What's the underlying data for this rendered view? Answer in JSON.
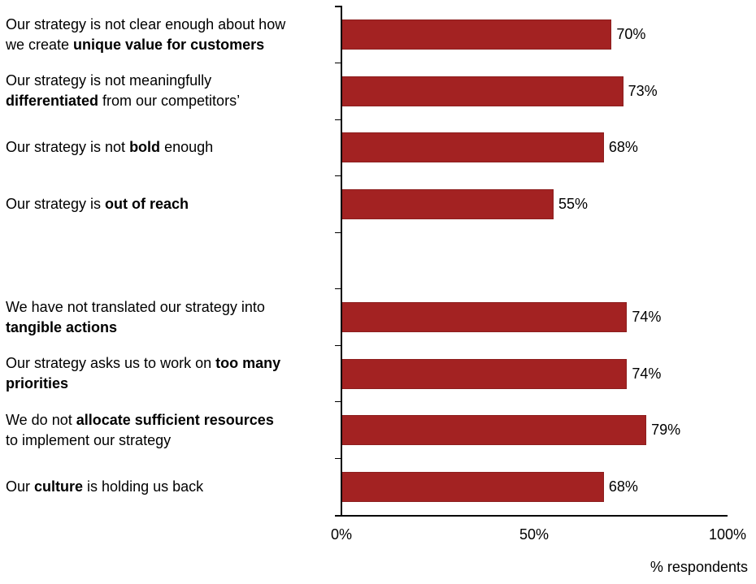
{
  "chart_data": {
    "type": "bar",
    "orientation": "horizontal",
    "title": "",
    "xlabel": "% respondents",
    "xlim": [
      0,
      100
    ],
    "xticks": [
      "0%",
      "50%",
      "100%"
    ],
    "grid": false,
    "legend": "none",
    "bar_color": "#A32222",
    "bar_border_color": "#8C1E1E",
    "groups": [
      {
        "items": [
          {
            "lines": [
              [
                {
                  "t": "Our strategy is not clear enough about how",
                  "b": false
                }
              ],
              [
                {
                  "t": "we create ",
                  "b": false
                },
                {
                  "t": "unique value for customers",
                  "b": true
                }
              ]
            ],
            "value": 70,
            "value_label": "70%"
          },
          {
            "lines": [
              [
                {
                  "t": "Our strategy is not meaningfully",
                  "b": false
                }
              ],
              [
                {
                  "t": "differentiated",
                  "b": true
                },
                {
                  "t": " from our competitors’",
                  "b": false
                }
              ]
            ],
            "value": 73,
            "value_label": "73%"
          },
          {
            "lines": [
              [
                {
                  "t": "Our strategy is not ",
                  "b": false
                },
                {
                  "t": "bold",
                  "b": true
                },
                {
                  "t": " enough",
                  "b": false
                }
              ]
            ],
            "value": 68,
            "value_label": "68%"
          },
          {
            "lines": [
              [
                {
                  "t": "Our strategy is ",
                  "b": false
                },
                {
                  "t": "out of reach",
                  "b": true
                }
              ]
            ],
            "value": 55,
            "value_label": "55%"
          }
        ]
      },
      {
        "items": [
          {
            "lines": [
              [
                {
                  "t": "We have not translated our strategy into",
                  "b": false
                }
              ],
              [
                {
                  "t": "tangible actions",
                  "b": true
                }
              ]
            ],
            "value": 74,
            "value_label": "74%"
          },
          {
            "lines": [
              [
                {
                  "t": "Our strategy asks us to work on ",
                  "b": false
                },
                {
                  "t": "too many",
                  "b": true
                }
              ],
              [
                {
                  "t": "priorities",
                  "b": true
                }
              ]
            ],
            "value": 74,
            "value_label": "74%"
          },
          {
            "lines": [
              [
                {
                  "t": "We do not ",
                  "b": false
                },
                {
                  "t": "allocate sufficient resources",
                  "b": true
                }
              ],
              [
                {
                  "t": "to implement our strategy",
                  "b": false
                }
              ]
            ],
            "value": 79,
            "value_label": "79%"
          },
          {
            "lines": [
              [
                {
                  "t": "Our ",
                  "b": false
                },
                {
                  "t": "culture",
                  "b": true
                },
                {
                  "t": " is holding us back",
                  "b": false
                }
              ]
            ],
            "value": 68,
            "value_label": "68%"
          }
        ]
      }
    ]
  }
}
